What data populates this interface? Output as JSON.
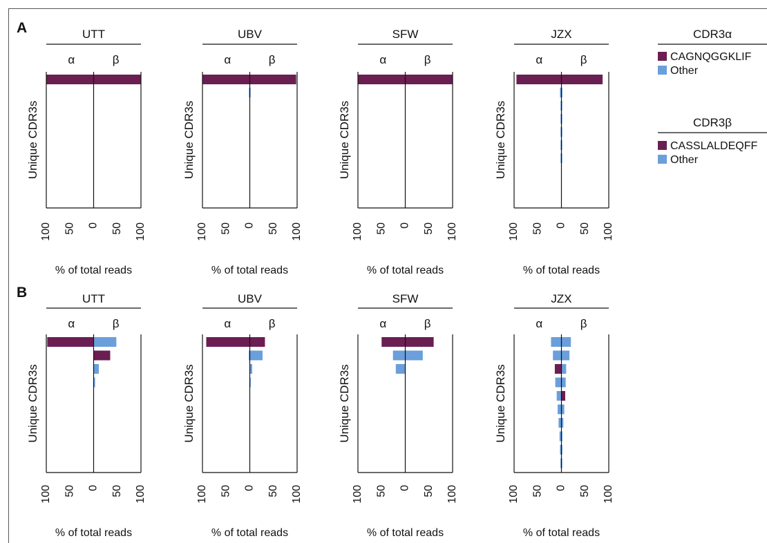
{
  "chart_data": {
    "type": "bar",
    "orientation": "horizontal-back-to-back",
    "colors": {
      "primary": "#6b1e52",
      "other": "#6a9fdb"
    },
    "legend": {
      "placement": "right",
      "groups": [
        {
          "title": "CDR3α",
          "entries": [
            {
              "label": "CAGNQGGKLIF",
              "color": "#6b1e52"
            },
            {
              "label": "Other",
              "color": "#6a9fdb"
            }
          ]
        },
        {
          "title": "CDR3β",
          "entries": [
            {
              "label": "CASSLALDEQFF",
              "color": "#6b1e52"
            },
            {
              "label": "Other",
              "color": "#6a9fdb"
            }
          ]
        }
      ]
    },
    "xlabel": "% of total reads",
    "ylabel": "Unique CDR3s",
    "left_label": "α",
    "right_label": "β",
    "xlim": [
      -100,
      100
    ],
    "xticks": [
      -100,
      -50,
      0,
      50,
      100
    ],
    "xtick_labels": [
      "100",
      "50",
      "0",
      "50",
      "100"
    ],
    "panels": [
      {
        "label": "A",
        "charts": [
          {
            "title": "UTT",
            "rows": [
              {
                "alpha": 100,
                "alpha_class": "primary",
                "beta": 100,
                "beta_class": "primary"
              }
            ]
          },
          {
            "title": "UBV",
            "rows": [
              {
                "alpha": 100,
                "alpha_class": "primary",
                "beta": 98,
                "beta_class": "primary"
              },
              {
                "alpha": 0.5,
                "alpha_class": "other",
                "beta": 1,
                "beta_class": "other"
              }
            ]
          },
          {
            "title": "SFW",
            "rows": [
              {
                "alpha": 100,
                "alpha_class": "primary",
                "beta": 100,
                "beta_class": "primary"
              }
            ]
          },
          {
            "title": "JZX",
            "rows": [
              {
                "alpha": 95,
                "alpha_class": "primary",
                "beta": 87,
                "beta_class": "primary"
              },
              {
                "alpha": 3,
                "alpha_class": "other",
                "beta": 2,
                "beta_class": "other"
              },
              {
                "alpha": 0.5,
                "alpha_class": "other",
                "beta": 1.5,
                "beta_class": "other"
              },
              {
                "alpha": 0.5,
                "alpha_class": "other",
                "beta": 1,
                "beta_class": "other"
              },
              {
                "alpha": 0.5,
                "alpha_class": "other",
                "beta": 1,
                "beta_class": "other"
              },
              {
                "alpha": 0.5,
                "alpha_class": "other",
                "beta": 1,
                "beta_class": "other"
              },
              {
                "alpha": 0.5,
                "alpha_class": "other",
                "beta": 1,
                "beta_class": "other"
              }
            ]
          }
        ]
      },
      {
        "label": "B",
        "charts": [
          {
            "title": "UTT",
            "rows": [
              {
                "alpha": 98,
                "alpha_class": "primary",
                "beta": 48,
                "beta_class": "other"
              },
              {
                "alpha": 0,
                "alpha_class": "other",
                "beta": 35,
                "beta_class": "primary"
              },
              {
                "alpha": 0,
                "alpha_class": "other",
                "beta": 11,
                "beta_class": "other"
              },
              {
                "alpha": 0,
                "alpha_class": "other",
                "beta": 3,
                "beta_class": "other"
              }
            ]
          },
          {
            "title": "UBV",
            "rows": [
              {
                "alpha": 92,
                "alpha_class": "primary",
                "beta": 32,
                "beta_class": "primary"
              },
              {
                "alpha": 2,
                "alpha_class": "other",
                "beta": 27,
                "beta_class": "other"
              },
              {
                "alpha": 0,
                "alpha_class": "other",
                "beta": 5,
                "beta_class": "other"
              },
              {
                "alpha": 0,
                "alpha_class": "other",
                "beta": 2,
                "beta_class": "other"
              }
            ]
          },
          {
            "title": "SFW",
            "rows": [
              {
                "alpha": 50,
                "alpha_class": "primary",
                "beta": 60,
                "beta_class": "primary"
              },
              {
                "alpha": 26,
                "alpha_class": "other",
                "beta": 37,
                "beta_class": "other"
              },
              {
                "alpha": 20,
                "alpha_class": "other",
                "beta": 0,
                "beta_class": "other"
              }
            ]
          },
          {
            "title": "JZX",
            "rows": [
              {
                "alpha": 22,
                "alpha_class": "other",
                "beta": 20,
                "beta_class": "other"
              },
              {
                "alpha": 18,
                "alpha_class": "other",
                "beta": 17,
                "beta_class": "other"
              },
              {
                "alpha": 14,
                "alpha_class": "primary",
                "beta": 10,
                "beta_class": "other"
              },
              {
                "alpha": 13,
                "alpha_class": "other",
                "beta": 9,
                "beta_class": "other"
              },
              {
                "alpha": 10,
                "alpha_class": "other",
                "beta": 8,
                "beta_class": "primary"
              },
              {
                "alpha": 8,
                "alpha_class": "other",
                "beta": 6,
                "beta_class": "other"
              },
              {
                "alpha": 6,
                "alpha_class": "other",
                "beta": 4,
                "beta_class": "other"
              },
              {
                "alpha": 4,
                "alpha_class": "other",
                "beta": 2,
                "beta_class": "other"
              },
              {
                "alpha": 3,
                "alpha_class": "other",
                "beta": 2,
                "beta_class": "other"
              },
              {
                "alpha": 2,
                "alpha_class": "other",
                "beta": 1,
                "beta_class": "other"
              }
            ]
          }
        ]
      }
    ]
  }
}
